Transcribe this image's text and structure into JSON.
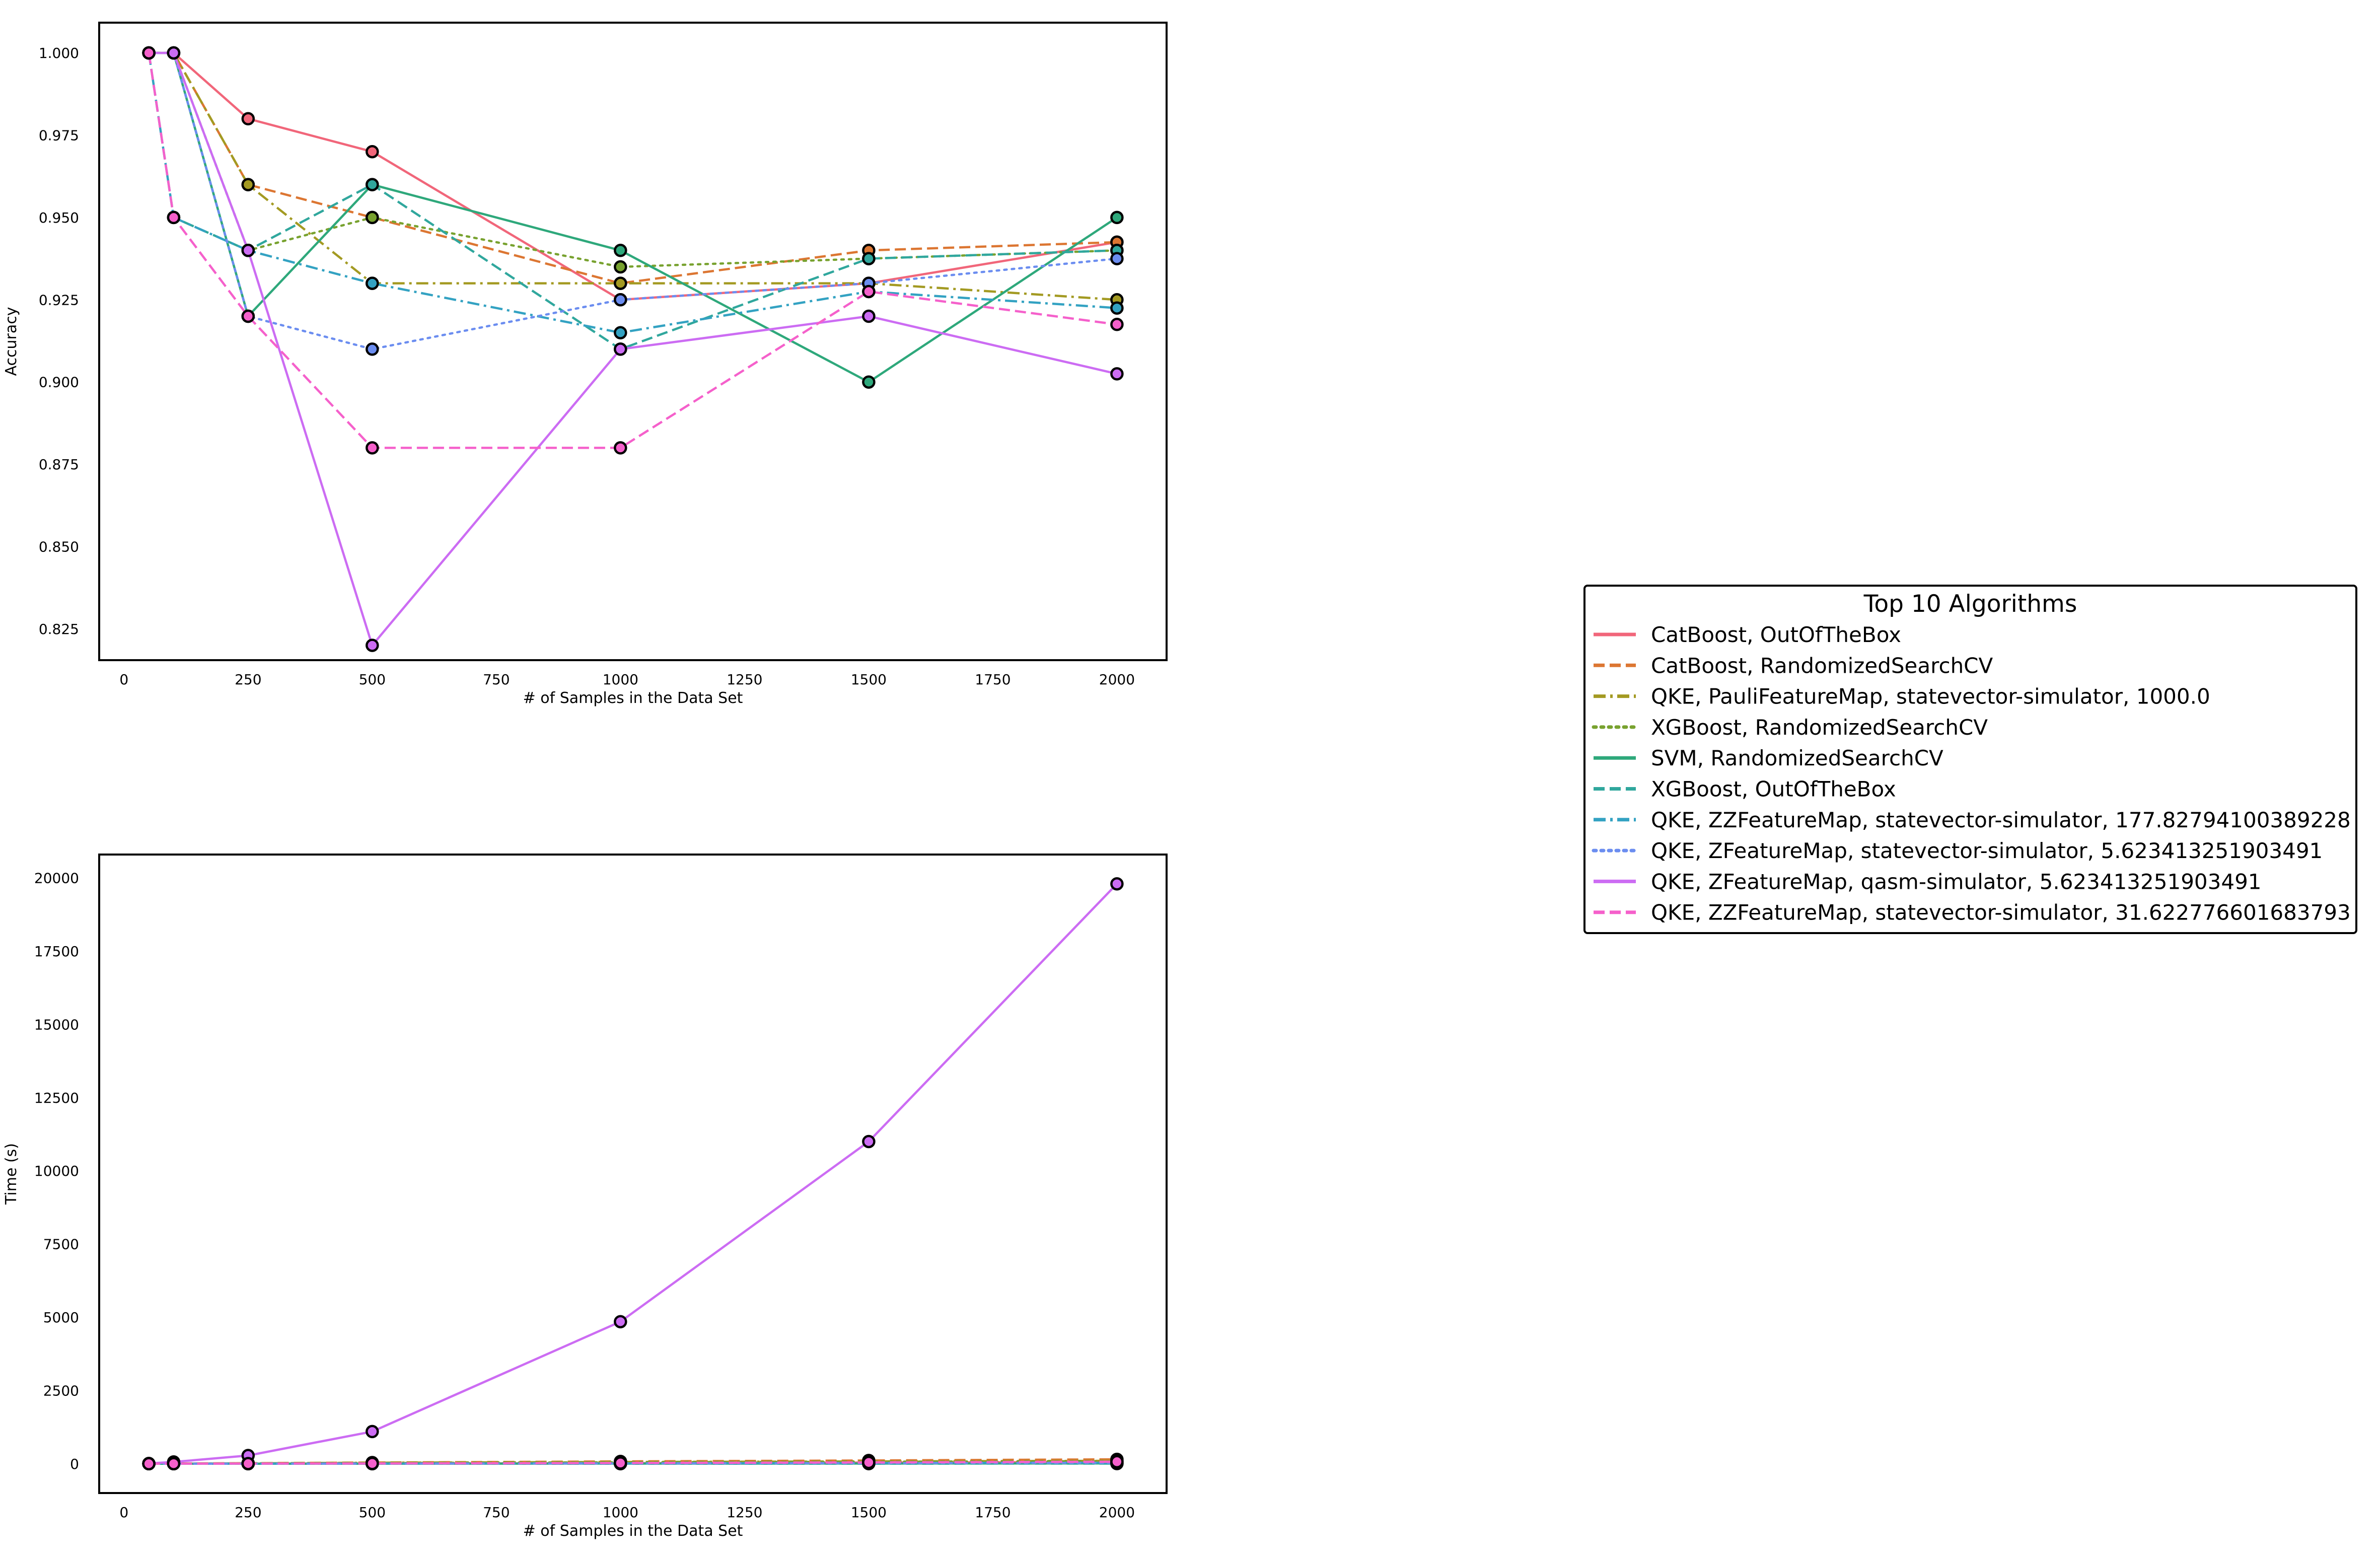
{
  "chart_data": [
    {
      "type": "line",
      "ylabel": "Accuracy",
      "xlabel": "# of Samples in the Data Set",
      "xlim": [
        -50,
        2100
      ],
      "ylim": [
        0.8155,
        1.0092
      ],
      "xticks": [
        0,
        250,
        500,
        750,
        1000,
        1250,
        1500,
        1750,
        2000
      ],
      "yticks": [
        0.825,
        0.85,
        0.875,
        0.9,
        0.925,
        0.95,
        0.975,
        1.0
      ],
      "ytick_labels": [
        "0.825",
        "0.850",
        "0.875",
        "0.900",
        "0.925",
        "0.950",
        "0.975",
        "1.000"
      ],
      "x": [
        50,
        100,
        250,
        500,
        1000,
        1500,
        2000
      ],
      "series": [
        {
          "name": "CatBoost, OutOfTheBox",
          "values": [
            1.0,
            1.0,
            0.98,
            0.97,
            0.925,
            0.93,
            0.9425
          ]
        },
        {
          "name": "CatBoost, RandomizedSearchCV",
          "values": [
            1.0,
            1.0,
            0.96,
            0.95,
            0.93,
            0.94,
            0.9425
          ]
        },
        {
          "name": "QKE, PauliFeatureMap, statevector-simulator, 1000.0",
          "values": [
            1.0,
            1.0,
            0.96,
            0.93,
            0.93,
            0.93,
            0.925
          ]
        },
        {
          "name": "XGBoost, RandomizedSearchCV",
          "values": [
            1.0,
            1.0,
            0.94,
            0.95,
            0.935,
            0.9375,
            0.94
          ]
        },
        {
          "name": "SVM, RandomizedSearchCV",
          "values": [
            1.0,
            1.0,
            0.92,
            0.96,
            0.94,
            0.9,
            0.95
          ]
        },
        {
          "name": "XGBoost, OutOfTheBox",
          "values": [
            1.0,
            0.95,
            0.94,
            0.96,
            0.91,
            0.9375,
            0.94
          ]
        },
        {
          "name": "QKE, ZZFeatureMap, statevector-simulator, 177.82794100389228",
          "values": [
            1.0,
            0.95,
            0.94,
            0.93,
            0.915,
            0.9275,
            0.9225
          ]
        },
        {
          "name": "QKE, ZFeatureMap, statevector-simulator, 5.623413251903491",
          "values": [
            1.0,
            1.0,
            0.92,
            0.91,
            0.925,
            0.93,
            0.9375
          ]
        },
        {
          "name": "QKE, ZFeatureMap, qasm-simulator, 5.623413251903491",
          "values": [
            1.0,
            1.0,
            0.94,
            0.82,
            0.91,
            0.92,
            0.9025
          ]
        },
        {
          "name": "QKE, ZZFeatureMap, statevector-simulator, 31.622776601683793",
          "values": [
            1.0,
            0.95,
            0.92,
            0.88,
            0.88,
            0.9275,
            0.9175
          ]
        }
      ]
    },
    {
      "type": "line",
      "ylabel": "Time (s)",
      "xlabel": "# of Samples in the Data Set",
      "xlim": [
        -50,
        2100
      ],
      "ylim": [
        -1000,
        20800
      ],
      "xticks": [
        0,
        250,
        500,
        750,
        1000,
        1250,
        1500,
        1750,
        2000
      ],
      "yticks": [
        0,
        2500,
        5000,
        7500,
        10000,
        12500,
        15000,
        17500,
        20000
      ],
      "ytick_labels": [
        "0",
        "2500",
        "5000",
        "7500",
        "10000",
        "12500",
        "15000",
        "17500",
        "20000"
      ],
      "x": [
        50,
        100,
        250,
        500,
        1000,
        1500,
        2000
      ],
      "series": [
        {
          "name": "CatBoost, OutOfTheBox",
          "values": [
            1,
            2,
            4,
            8,
            20,
            40,
            60
          ]
        },
        {
          "name": "CatBoost, RandomizedSearchCV",
          "values": [
            5,
            10,
            20,
            40,
            80,
            110,
            150
          ]
        },
        {
          "name": "QKE, PauliFeatureMap, statevector-simulator, 1000.0",
          "values": [
            2,
            5,
            15,
            35,
            60,
            80,
            100
          ]
        },
        {
          "name": "XGBoost, RandomizedSearchCV",
          "values": [
            3,
            6,
            12,
            25,
            50,
            70,
            90
          ]
        },
        {
          "name": "SVM, RandomizedSearchCV",
          "values": [
            1,
            1,
            2,
            3,
            5,
            8,
            12
          ]
        },
        {
          "name": "XGBoost, OutOfTheBox",
          "values": [
            1,
            1,
            1,
            2,
            3,
            4,
            6
          ]
        },
        {
          "name": "QKE, ZZFeatureMap, statevector-simulator, 177.82794100389228",
          "values": [
            1,
            2,
            4,
            8,
            15,
            25,
            35
          ]
        },
        {
          "name": "QKE, ZFeatureMap, statevector-simulator, 5.623413251903491",
          "values": [
            1,
            2,
            3,
            6,
            12,
            20,
            30
          ]
        },
        {
          "name": "QKE, ZFeatureMap, qasm-simulator, 5.623413251903491",
          "values": [
            10,
            60,
            280,
            1100,
            4850,
            11000,
            19800
          ]
        },
        {
          "name": "QKE, ZZFeatureMap, statevector-simulator, 31.622776601683793",
          "values": [
            1,
            2,
            5,
            10,
            25,
            45,
            70
          ]
        }
      ]
    }
  ],
  "legend": {
    "title": "Top 10 Algorithms",
    "placement": "right"
  },
  "series_styles": [
    {
      "color": "#f1667a",
      "dash": "solid"
    },
    {
      "color": "#dc7632",
      "dash": "dashed"
    },
    {
      "color": "#a39a22",
      "dash": "dashdot"
    },
    {
      "color": "#78a22f",
      "dash": "dotted"
    },
    {
      "color": "#2ea87b",
      "dash": "solid"
    },
    {
      "color": "#30a79d",
      "dash": "dashed"
    },
    {
      "color": "#33a2c2",
      "dash": "dashdot"
    },
    {
      "color": "#6b8df0",
      "dash": "dotted"
    },
    {
      "color": "#cc6cf3",
      "dash": "solid"
    },
    {
      "color": "#f560cb",
      "dash": "dashed"
    }
  ]
}
